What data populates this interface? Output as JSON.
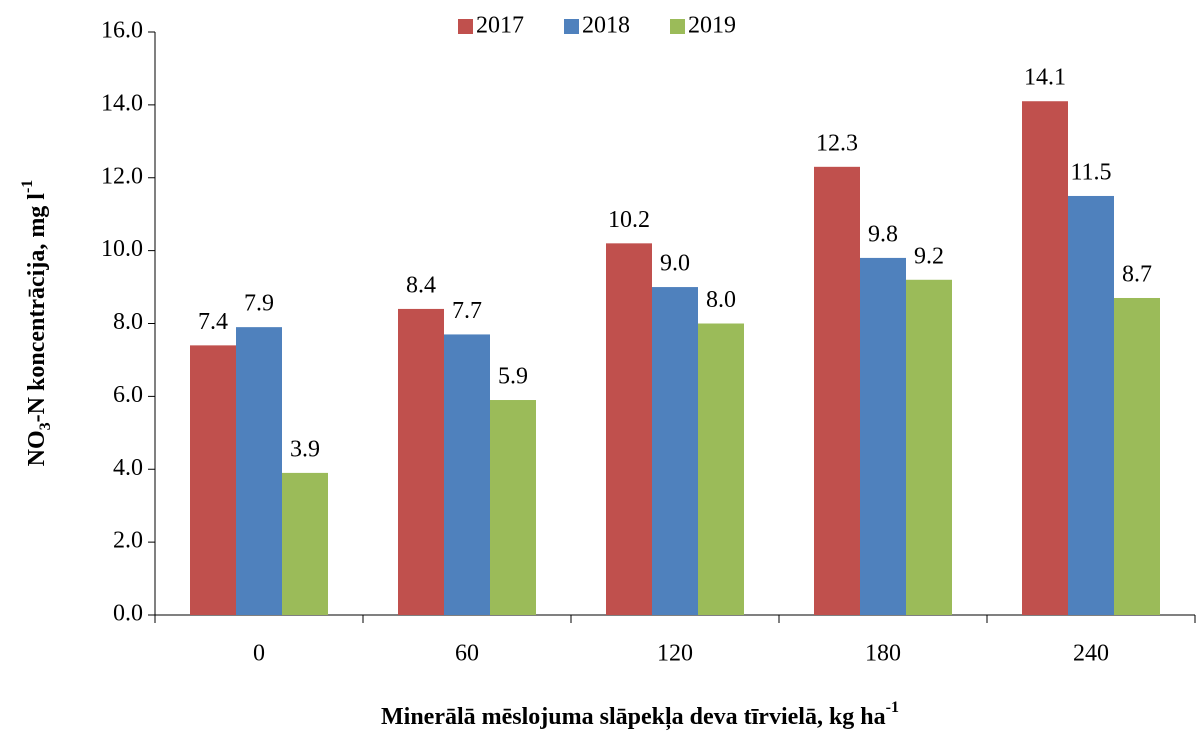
{
  "chart_data": {
    "type": "bar",
    "ylabel": [
      "NO",
      "3",
      "-N koncentrācija, mg l",
      "-1"
    ],
    "xlabel": [
      "Minerālā mēslojuma slāpekļa deva tīrvielā, kg ha",
      "-1"
    ],
    "categories": [
      "0",
      "60",
      "120",
      "180",
      "240"
    ],
    "series": [
      {
        "name": "2017",
        "color": "#c0504d",
        "values": [
          7.4,
          8.4,
          10.2,
          12.3,
          14.1
        ],
        "value_labels": [
          "7.4",
          "8.4",
          "10.2",
          "12.3",
          "14.1"
        ]
      },
      {
        "name": "2018",
        "color": "#4f81bd",
        "values": [
          7.9,
          7.7,
          9.0,
          9.8,
          11.5
        ],
        "value_labels": [
          "7.9",
          "7.7",
          "9.0",
          "9.8",
          "11.5"
        ]
      },
      {
        "name": "2019",
        "color": "#9bbb59",
        "values": [
          3.9,
          5.9,
          8.0,
          9.2,
          8.7
        ],
        "value_labels": [
          "3.9",
          "5.9",
          "8.0",
          "9.2",
          "8.7"
        ]
      }
    ],
    "ylim": [
      0,
      16
    ],
    "yticks": [
      {
        "value": 0,
        "label": "0.0"
      },
      {
        "value": 2,
        "label": "2.0"
      },
      {
        "value": 4,
        "label": "4.0"
      },
      {
        "value": 6,
        "label": "6.0"
      },
      {
        "value": 8,
        "label": "8.0"
      },
      {
        "value": 10,
        "label": "10.0"
      },
      {
        "value": 12,
        "label": "12.0"
      },
      {
        "value": 14,
        "label": "14.0"
      },
      {
        "value": 16,
        "label": "16.0"
      }
    ],
    "legend": "top"
  }
}
